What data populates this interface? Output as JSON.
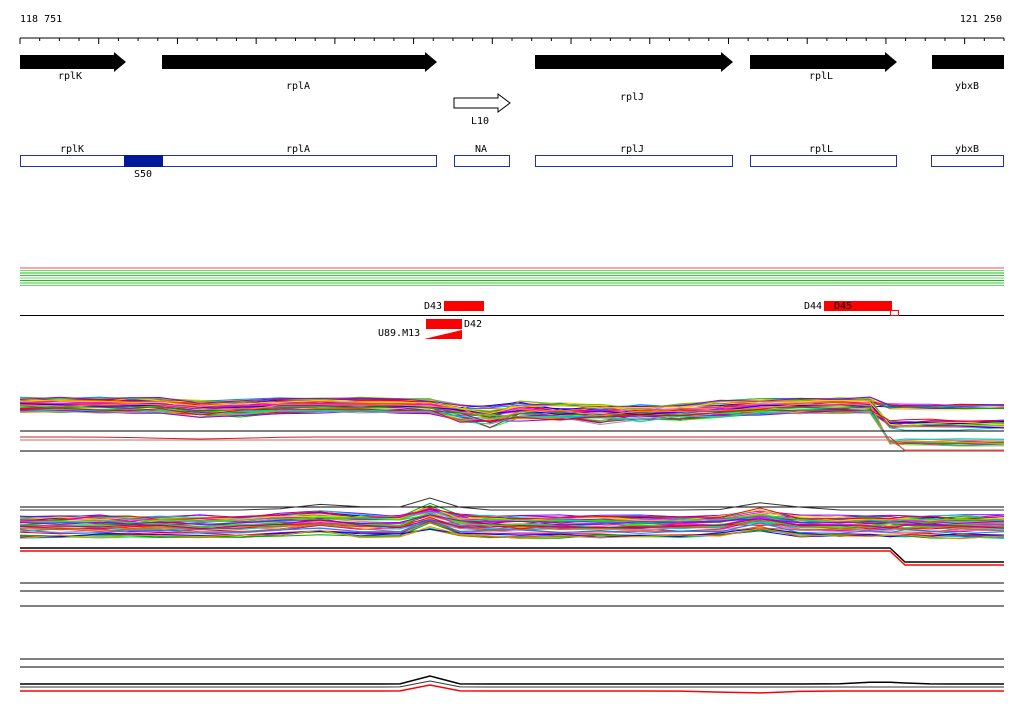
{
  "coords": {
    "start": "118 751",
    "end": "121 250"
  },
  "genes": [
    {
      "label": "rplK"
    },
    {
      "label": "rplA"
    },
    {
      "label": "rplJ"
    },
    {
      "label": "rplL"
    },
    {
      "label": "ybxB"
    }
  ],
  "open_gene": {
    "label": "L10"
  },
  "regions": [
    {
      "label": "rplK"
    },
    {
      "label": "rplA"
    },
    {
      "label": "NA"
    },
    {
      "label": "rplJ"
    },
    {
      "label": "rplL"
    },
    {
      "label": "ybxB"
    }
  ],
  "region_highlight": {
    "label": "S50"
  },
  "features": [
    {
      "label": "D43"
    },
    {
      "label": "D42"
    },
    {
      "label": "U89.M13"
    },
    {
      "label": "D44"
    },
    {
      "label": "D45"
    }
  ],
  "colors": {
    "gene_fill": "#000000",
    "region_stroke": "#1a33b3",
    "region_highlight": "#001a99",
    "feature_fill": "#ff0000",
    "track_greens": [
      "#33cc33",
      "#66dd66",
      "#22bb22"
    ],
    "palette": [
      "#ff00ff",
      "#00aa00",
      "#0000ff",
      "#ff8800",
      "#00cccc",
      "#aa00aa",
      "#ffcc00",
      "#ff0000",
      "#00ff00",
      "#8800ff",
      "#cc6600",
      "#0088ff",
      "#ff66cc",
      "#66cc00",
      "#999999",
      "#cc0066"
    ]
  }
}
